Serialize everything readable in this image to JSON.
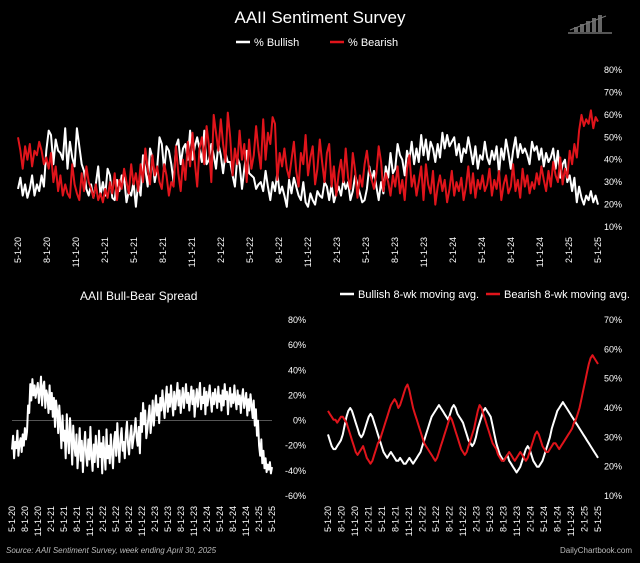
{
  "title": "AAII Sentiment Survey",
  "footer": {
    "source": "Source: AAII Sentiment Survey, week ending April 30, 2025",
    "brand": "DailyChartbook.com"
  },
  "colors": {
    "bullish": "#ffffff",
    "bearish": "#e0141b",
    "background": "#000000",
    "grid": "#333333"
  },
  "chart_data": [
    {
      "id": "top",
      "type": "line",
      "title": "",
      "legend": [
        "% Bullish",
        "% Bearish"
      ],
      "x_ticks": [
        "5-1-20",
        "8-1-20",
        "11-1-20",
        "2-1-21",
        "5-1-21",
        "8-1-21",
        "11-1-21",
        "2-1-22",
        "5-1-22",
        "8-1-22",
        "11-1-22",
        "2-1-23",
        "5-1-23",
        "8-1-23",
        "11-1-23",
        "2-1-24",
        "5-1-24",
        "8-1-24",
        "11-1-24",
        "2-1-25",
        "5-1-25"
      ],
      "y_ticks": [
        "80%",
        "70%",
        "60%",
        "50%",
        "40%",
        "30%",
        "20%",
        "10%"
      ],
      "ylim": [
        10,
        80
      ],
      "xlim": [
        0,
        60
      ],
      "series": [
        {
          "name": "% Bullish",
          "values": [
            27,
            32,
            24,
            29,
            23,
            27,
            33,
            24,
            29,
            26,
            33,
            28,
            44,
            53,
            51,
            38,
            49,
            44,
            43,
            40,
            54,
            36,
            48,
            41,
            37,
            54,
            46,
            38,
            35,
            27,
            24,
            29,
            23,
            29,
            37,
            24,
            30,
            24,
            36,
            33,
            23,
            22,
            31,
            26,
            33,
            32,
            21,
            26,
            24,
            30,
            19,
            30,
            24,
            42,
            36,
            28,
            45,
            41,
            30,
            36,
            50,
            47,
            35,
            46,
            44,
            38,
            30,
            46,
            49,
            38,
            45,
            47,
            40,
            53,
            40,
            46,
            50,
            45,
            39,
            53,
            38,
            40,
            47,
            42,
            36,
            47,
            42,
            34,
            43,
            39,
            39,
            33,
            28,
            41,
            38,
            27,
            36,
            44,
            34,
            33,
            32,
            27,
            29,
            30,
            26,
            35,
            28,
            22,
            30,
            26,
            34,
            25,
            28,
            24,
            19,
            31,
            25,
            32,
            28,
            24,
            22,
            30,
            21,
            19,
            25,
            22,
            20,
            26,
            24,
            23,
            30,
            28,
            22,
            29,
            21,
            25,
            28,
            24,
            31,
            27,
            30,
            22,
            26,
            33,
            29,
            25,
            21,
            22,
            27,
            37,
            31,
            35,
            28,
            22,
            30,
            25,
            37,
            32,
            43,
            34,
            36,
            47,
            42,
            40,
            33,
            44,
            40,
            48,
            38,
            45,
            39,
            51,
            42,
            49,
            40,
            48,
            45,
            39,
            47,
            41,
            52,
            45,
            51,
            46,
            48,
            50,
            42,
            47,
            39,
            45,
            43,
            50,
            44,
            38,
            46,
            36,
            42,
            40,
            48,
            41,
            38,
            44,
            40,
            46,
            34,
            45,
            40,
            49,
            43,
            36,
            44,
            50,
            41,
            47,
            43,
            45,
            42,
            38,
            48,
            44,
            46,
            40,
            45,
            37,
            43,
            39,
            41,
            45,
            36,
            44,
            32,
            38,
            40,
            30,
            33,
            26,
            32,
            21,
            28,
            23,
            20,
            24,
            22,
            26,
            21,
            24,
            20
          ]
        },
        {
          "name": "% Bearish",
          "values": [
            50,
            44,
            36,
            46,
            40,
            47,
            37,
            44,
            42,
            48,
            44,
            38,
            41,
            36,
            43,
            30,
            37,
            26,
            33,
            24,
            29,
            25,
            23,
            38,
            29,
            25,
            22,
            34,
            26,
            37,
            30,
            27,
            23,
            29,
            22,
            25,
            21,
            27,
            23,
            30,
            25,
            34,
            22,
            31,
            27,
            36,
            30,
            25,
            38,
            29,
            34,
            26,
            38,
            30,
            45,
            36,
            29,
            42,
            33,
            37,
            30,
            27,
            38,
            33,
            24,
            30,
            28,
            46,
            34,
            26,
            40,
            31,
            48,
            37,
            52,
            39,
            28,
            45,
            50,
            38,
            55,
            46,
            30,
            60,
            52,
            44,
            58,
            47,
            39,
            61,
            50,
            33,
            45,
            38,
            53,
            40,
            47,
            30,
            49,
            36,
            42,
            55,
            44,
            36,
            58,
            40,
            52,
            47,
            59,
            56,
            31,
            43,
            37,
            45,
            36,
            32,
            40,
            48,
            35,
            28,
            43,
            38,
            51,
            33,
            41,
            46,
            29,
            36,
            49,
            39,
            30,
            43,
            47,
            28,
            37,
            24,
            34,
            40,
            30,
            45,
            32,
            27,
            43,
            35,
            23,
            33,
            28,
            38,
            44,
            35,
            31,
            27,
            34,
            46,
            39,
            26,
            34,
            30,
            24,
            33,
            28,
            37,
            25,
            31,
            22,
            36,
            42,
            28,
            33,
            24,
            30,
            37,
            22,
            38,
            29,
            25,
            35,
            20,
            28,
            33,
            26,
            31,
            21,
            27,
            35,
            24,
            30,
            26,
            32,
            22,
            28,
            37,
            25,
            34,
            23,
            31,
            27,
            33,
            26,
            29,
            36,
            24,
            31,
            27,
            35,
            22,
            29,
            33,
            25,
            28,
            38,
            26,
            31,
            23,
            36,
            28,
            33,
            25,
            30,
            27,
            34,
            29,
            37,
            31,
            26,
            35,
            28,
            39,
            33,
            30,
            41,
            29,
            36,
            32,
            44,
            38,
            47,
            41,
            53,
            60,
            55,
            58,
            56,
            62,
            54,
            59,
            57
          ]
        }
      ]
    },
    {
      "id": "spread",
      "type": "line",
      "title": "AAII Bull-Bear Spread",
      "x_ticks": [
        "5-1-20",
        "8-1-20",
        "11-1-20",
        "2-1-21",
        "5-1-21",
        "8-1-21",
        "11-1-21",
        "2-1-22",
        "5-1-22",
        "8-1-22",
        "11-1-22",
        "2-1-23",
        "5-1-23",
        "8-1-23",
        "11-1-23",
        "2-1-24",
        "5-1-24",
        "8-1-24",
        "11-1-24",
        "2-1-25",
        "5-1-25"
      ],
      "y_ticks": [
        "80%",
        "60%",
        "40%",
        "20%",
        "0%",
        "-20%",
        "-40%",
        "-60%"
      ],
      "ylim": [
        -60,
        80
      ],
      "xlim": [
        0,
        60
      ],
      "series": [
        {
          "name": "Bull-Bear Spread",
          "values": [
            -23,
            -12,
            -30,
            -17,
            -22,
            -8,
            -28,
            -18,
            -14,
            -25,
            -11,
            -20,
            -6,
            -15,
            -9,
            12,
            6,
            29,
            16,
            33,
            20,
            28,
            18,
            24,
            30,
            14,
            22,
            35,
            12,
            27,
            31,
            10,
            24,
            19,
            6,
            28,
            9,
            22,
            3,
            18,
            -5,
            16,
            8,
            -10,
            12,
            -2,
            -22,
            4,
            -16,
            -8,
            -30,
            5,
            -14,
            -26,
            2,
            -12,
            -35,
            -4,
            -20,
            -28,
            -11,
            -38,
            -24,
            -6,
            -32,
            -16,
            -41,
            -22,
            -9,
            -27,
            -36,
            -15,
            -31,
            -5,
            -28,
            -40,
            -19,
            -33,
            -12,
            -24,
            -37,
            -8,
            -29,
            -18,
            -42,
            -13,
            -26,
            -39,
            -7,
            -30,
            -20,
            -34,
            -11,
            -25,
            -38,
            -16,
            -9,
            -28,
            -2,
            -21,
            -33,
            -14,
            -6,
            -24,
            -17,
            -30,
            -10,
            -1,
            -19,
            -27,
            -12,
            -4,
            -22,
            -15,
            -8,
            2,
            -13,
            -20,
            -5,
            -26,
            6,
            -9,
            14,
            -3,
            8,
            -14,
            -7,
            3,
            12,
            -10,
            1,
            16,
            -4,
            9,
            20,
            4,
            13,
            -2,
            18,
            8,
            24,
            12,
            2,
            17,
            27,
            7,
            21,
            11,
            28,
            15,
            4,
            23,
            9,
            19,
            30,
            12,
            24,
            6,
            17,
            26,
            10,
            20,
            29,
            14,
            22,
            8,
            18,
            27,
            13,
            24,
            3,
            16,
            25,
            11,
            21,
            30,
            9,
            19,
            14,
            26,
            5,
            23,
            12,
            19,
            28,
            16,
            7,
            22,
            13,
            25,
            18,
            10,
            27,
            15,
            20,
            8,
            24,
            12,
            29,
            17,
            23,
            5,
            19,
            26,
            11,
            21,
            14,
            28,
            16,
            9,
            24,
            13,
            20,
            6,
            18,
            25,
            10,
            15,
            22,
            4,
            17,
            8,
            21,
            12,
            2,
            16,
            -4,
            9,
            -12,
            0,
            -20,
            -28,
            -15,
            -34,
            -24,
            -38,
            -30,
            -41,
            -35,
            -39,
            -33,
            -42,
            -37
          ]
        }
      ]
    },
    {
      "id": "ma",
      "type": "line",
      "title": "",
      "legend": [
        "Bullish 8-wk moving avg.",
        "Bearish 8-wk moving avg."
      ],
      "x_ticks": [
        "5-1-20",
        "8-1-20",
        "11-1-20",
        "2-1-21",
        "5-1-21",
        "8-1-21",
        "11-1-21",
        "2-1-22",
        "5-1-22",
        "8-1-22",
        "11-1-22",
        "2-1-23",
        "5-1-23",
        "8-1-23",
        "11-1-23",
        "2-1-24",
        "5-1-24",
        "8-1-24",
        "11-1-24",
        "2-1-25",
        "5-1-25"
      ],
      "y_ticks": [
        "70%",
        "60%",
        "50%",
        "40%",
        "30%",
        "20%",
        "10%"
      ],
      "ylim": [
        10,
        70
      ],
      "xlim": [
        0,
        60
      ],
      "series": [
        {
          "name": "Bullish 8-wk moving avg.",
          "values": [
            31,
            29,
            27,
            26,
            26,
            27,
            28,
            29,
            31,
            34,
            37,
            39,
            40,
            39,
            37,
            35,
            33,
            31,
            30,
            31,
            33,
            35,
            37,
            38,
            37,
            35,
            33,
            31,
            29,
            27,
            25,
            24,
            23,
            24,
            25,
            24,
            23,
            22,
            22,
            23,
            22,
            21,
            21,
            22,
            23,
            22,
            21,
            22,
            23,
            24,
            25,
            27,
            29,
            31,
            33,
            35,
            37,
            38,
            39,
            40,
            41,
            40,
            39,
            38,
            37,
            36,
            38,
            40,
            41,
            40,
            38,
            37,
            36,
            35,
            33,
            31,
            29,
            28,
            27,
            28,
            30,
            33,
            35,
            37,
            39,
            40,
            39,
            38,
            37,
            34,
            31,
            28,
            26,
            24,
            23,
            22,
            23,
            24,
            22,
            21,
            20,
            19,
            18,
            19,
            20,
            22,
            24,
            26,
            27,
            26,
            24,
            22,
            21,
            20,
            20,
            21,
            22,
            24,
            26,
            28,
            30,
            33,
            35,
            37,
            39,
            40,
            41,
            42,
            41,
            40,
            39,
            38,
            37,
            36,
            35,
            34,
            33,
            32,
            31,
            30,
            29,
            28,
            27,
            26,
            25,
            24,
            23
          ]
        },
        {
          "name": "Bearish 8-wk moving avg.",
          "values": [
            39,
            38,
            37,
            36,
            36,
            35,
            36,
            37,
            37,
            36,
            35,
            33,
            31,
            29,
            27,
            25,
            24,
            25,
            26,
            27,
            25,
            23,
            22,
            21,
            22,
            24,
            26,
            28,
            29,
            31,
            33,
            35,
            37,
            39,
            41,
            42,
            43,
            42,
            40,
            41,
            43,
            45,
            47,
            48,
            46,
            43,
            40,
            38,
            36,
            34,
            32,
            30,
            28,
            27,
            26,
            25,
            24,
            23,
            22,
            23,
            25,
            27,
            29,
            31,
            33,
            35,
            37,
            36,
            34,
            32,
            30,
            28,
            26,
            25,
            24,
            25,
            27,
            29,
            31,
            33,
            36,
            39,
            41,
            40,
            38,
            36,
            34,
            32,
            30,
            28,
            27,
            26,
            24,
            23,
            22,
            22,
            23,
            24,
            25,
            24,
            23,
            22,
            23,
            24,
            25,
            24,
            23,
            22,
            23,
            25,
            27,
            29,
            31,
            32,
            31,
            29,
            27,
            26,
            25,
            25,
            26,
            27,
            28,
            28,
            27,
            26,
            27,
            28,
            29,
            30,
            31,
            32,
            33,
            35,
            36,
            38,
            40,
            43,
            46,
            49,
            52,
            55,
            57,
            58,
            57,
            56,
            55
          ]
        }
      ]
    }
  ]
}
